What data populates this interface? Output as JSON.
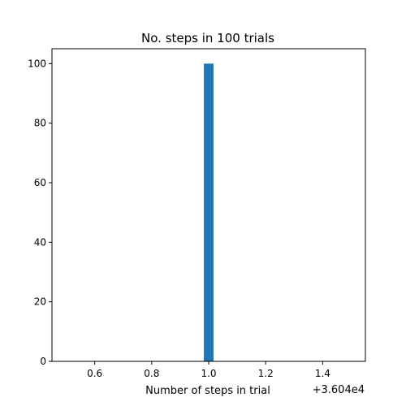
{
  "chart_data": {
    "type": "bar",
    "title": "No. steps in 100 trials",
    "xlabel": "Number of steps in trial",
    "ylabel": "",
    "x_offset_label": "+3.604e4",
    "xlim": [
      0.45,
      1.55
    ],
    "ylim": [
      0,
      105
    ],
    "x_ticks": [
      {
        "value": 0.6,
        "label": "0.6"
      },
      {
        "value": 0.8,
        "label": "0.8"
      },
      {
        "value": 1.0,
        "label": "1.0"
      },
      {
        "value": 1.2,
        "label": "1.2"
      },
      {
        "value": 1.4,
        "label": "1.4"
      }
    ],
    "y_ticks": [
      {
        "value": 0,
        "label": "0"
      },
      {
        "value": 20,
        "label": "20"
      },
      {
        "value": 40,
        "label": "40"
      },
      {
        "value": 60,
        "label": "60"
      },
      {
        "value": 80,
        "label": "80"
      },
      {
        "value": 100,
        "label": "100"
      }
    ],
    "bars": [
      {
        "x_start": 0.983,
        "x_end": 1.017,
        "value": 100
      }
    ],
    "grid": false,
    "bar_color": "#1f77b4"
  }
}
